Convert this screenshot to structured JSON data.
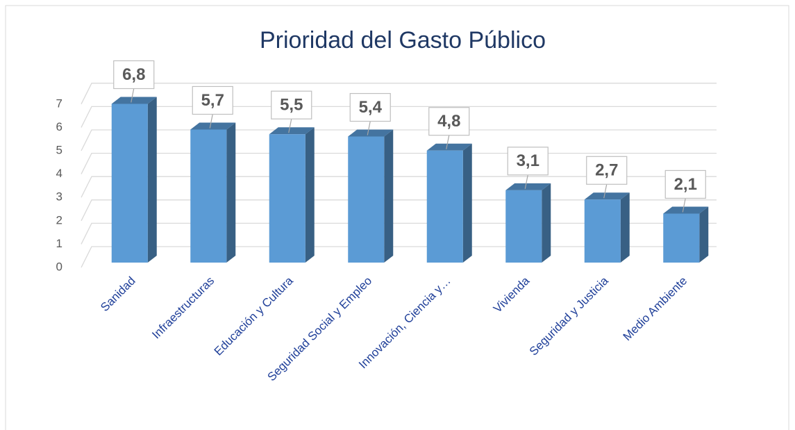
{
  "chart_data": {
    "type": "bar3d",
    "title": "Prioridad del Gasto Público",
    "categories": [
      "Sanidad",
      "Infraestructuras",
      "Educación y Cultura",
      "Seguridad Social y Empleo",
      "Innovación, Ciencia y…",
      "Vivienda",
      "Seguridad y Justicia",
      "Medio Ambiente"
    ],
    "values": [
      6.8,
      5.7,
      5.5,
      5.4,
      4.8,
      3.1,
      2.7,
      2.1
    ],
    "value_labels": [
      "6,8",
      "5,7",
      "5,5",
      "5,4",
      "4,8",
      "3,1",
      "2,7",
      "2,1"
    ],
    "color": "#5b9bd5",
    "ylim": [
      0,
      7
    ],
    "yticks": [
      0,
      1,
      2,
      3,
      4,
      5,
      6,
      7
    ],
    "grid": true
  }
}
